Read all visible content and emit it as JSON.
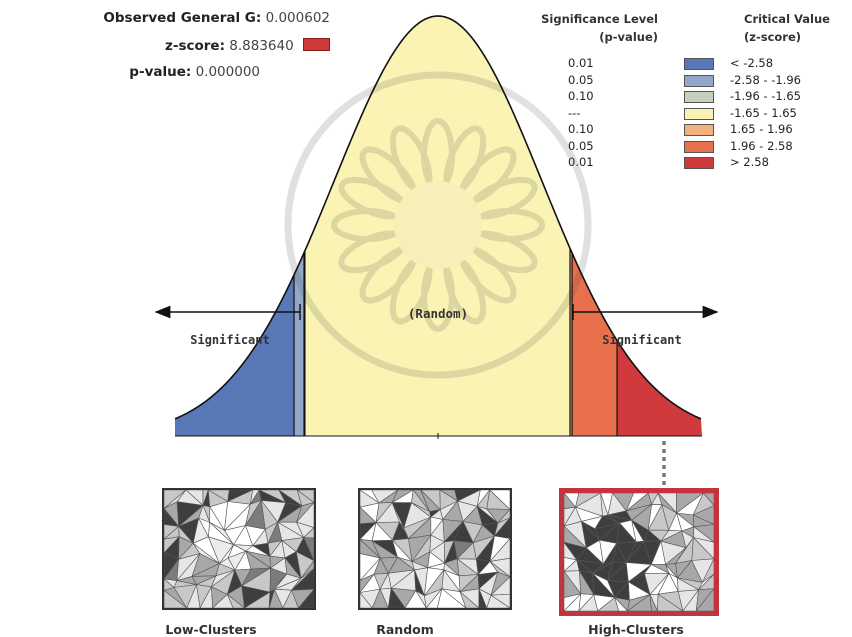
{
  "stats": {
    "observed_label": "Observed General G:",
    "observed_value": "0.000602",
    "z_label": "z-score:",
    "z_value": "8.883640",
    "p_label": "p-value:",
    "p_value": "0.000000"
  },
  "legend": {
    "sig_header": "Significance Level (p-value)",
    "sig_header_l1": "Significance Level",
    "sig_header_l2": "(p-value)",
    "crit_header_l1": "Critical Value",
    "crit_header_l2": "(z-score)",
    "rows": [
      {
        "p": "0.01",
        "z": "< -2.58",
        "color": "#5878b8"
      },
      {
        "p": "0.05",
        "z": "-2.58 - -1.96",
        "color": "#93a8c8"
      },
      {
        "p": "0.10",
        "z": "-1.96 - -1.65",
        "color": "#c6cfbd"
      },
      {
        "p": "---",
        "z": "-1.65 - 1.65",
        "color": "#fbf3b4"
      },
      {
        "p": "0.10",
        "z": "1.65 - 1.96",
        "color": "#f2b17e"
      },
      {
        "p": "0.05",
        "z": "1.96 - 2.58",
        "color": "#e8704c"
      },
      {
        "p": "0.01",
        "z": "> 2.58",
        "color": "#d03a3c"
      }
    ]
  },
  "curve": {
    "random_label": "(Random)",
    "significant_left": "Significant",
    "significant_right": "Significant",
    "z_cutoffs": [
      -2.58,
      -1.96,
      -1.65,
      1.65,
      1.96,
      2.58
    ],
    "observed_z": 8.88364
  },
  "maps": [
    {
      "label": "Low-Clusters",
      "pattern": "low",
      "highlighted": false
    },
    {
      "label": "Random",
      "pattern": "random",
      "highlighted": false
    },
    {
      "label": "High-Clusters",
      "pattern": "high",
      "highlighted": true
    }
  ],
  "colors": {
    "z_swatch": "#d03a3c",
    "highlight_border": "#c4343f",
    "curve_line": "#111111",
    "dotted_marker": "#7a7a7a"
  }
}
